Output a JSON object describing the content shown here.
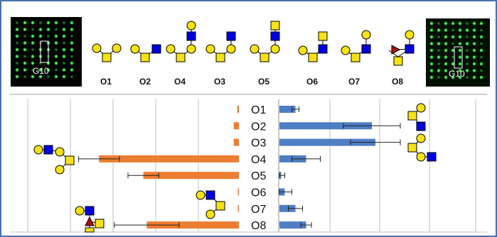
{
  "colors": {
    "frame": "#4a72b0",
    "left_bar": "#ed7d31",
    "right_bar": "#4e7ec3",
    "galactose": "#f6e214",
    "glcnac": "#0000e0",
    "fucose": "#b01010",
    "fluorescence": "#2fcf38",
    "grid": "#d4d4d4"
  },
  "panels": {
    "left_image_label": "G10",
    "right_image_label": "G10"
  },
  "glycan_codes": [
    "O1",
    "O2",
    "O4",
    "O3",
    "O5",
    "O6",
    "O7",
    "O8"
  ],
  "chart_data": {
    "type": "bar",
    "title": "",
    "categories": [
      "O1",
      "O2",
      "O3",
      "O4",
      "O5",
      "O6",
      "O7",
      "O8"
    ],
    "series": [
      {
        "side": "left",
        "values": [
          0.01,
          0.03,
          0.03,
          0.82,
          0.56,
          0.005,
          0.005,
          0.54
        ],
        "errors": [
          0.005,
          0.01,
          0.01,
          0.12,
          0.09,
          0.002,
          0.002,
          0.19
        ]
      },
      {
        "side": "right",
        "values": [
          0.09,
          0.52,
          0.54,
          0.15,
          0.01,
          0.03,
          0.09,
          0.15
        ],
        "errors": [
          0.02,
          0.16,
          0.14,
          0.08,
          0.02,
          0.04,
          0.04,
          0.03
        ]
      }
    ],
    "grid": true,
    "legend": "none"
  }
}
